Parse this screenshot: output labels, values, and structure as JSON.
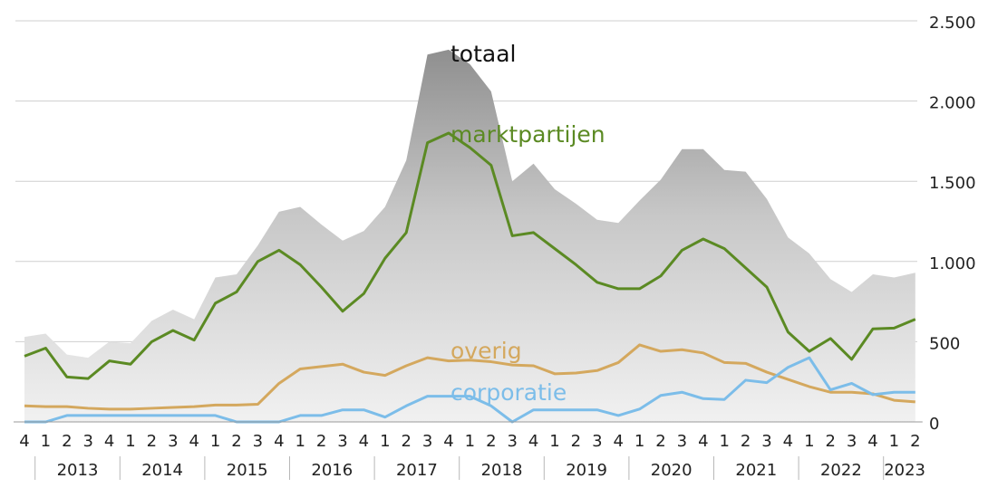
{
  "chart_data": {
    "type": "line",
    "ylim": [
      0,
      2500
    ],
    "y_ticks": [
      {
        "value": 0,
        "label": "0"
      },
      {
        "value": 500,
        "label": "500"
      },
      {
        "value": 1000,
        "label": "1.000"
      },
      {
        "value": 1500,
        "label": "1.500"
      },
      {
        "value": 2000,
        "label": "2.000"
      },
      {
        "value": 2500,
        "label": "2.500"
      }
    ],
    "grid": true,
    "quarter_labels": [
      "4",
      "1",
      "2",
      "3",
      "4",
      "1",
      "2",
      "3",
      "4",
      "1",
      "2",
      "3",
      "4",
      "1",
      "2",
      "3",
      "4",
      "1",
      "2",
      "3",
      "4",
      "1",
      "2",
      "3",
      "4",
      "1",
      "2",
      "3",
      "4",
      "1",
      "2",
      "3",
      "4",
      "1",
      "2",
      "3",
      "4",
      "1",
      "2",
      "3",
      "4",
      "1",
      "2"
    ],
    "years": [
      {
        "label": "2013",
        "start": 1,
        "end": 4
      },
      {
        "label": "2014",
        "start": 5,
        "end": 8
      },
      {
        "label": "2015",
        "start": 9,
        "end": 12
      },
      {
        "label": "2016",
        "start": 13,
        "end": 16
      },
      {
        "label": "2017",
        "start": 17,
        "end": 20
      },
      {
        "label": "2018",
        "start": 21,
        "end": 24
      },
      {
        "label": "2019",
        "start": 25,
        "end": 28
      },
      {
        "label": "2020",
        "start": 29,
        "end": 32
      },
      {
        "label": "2021",
        "start": 33,
        "end": 36
      },
      {
        "label": "2022",
        "start": 37,
        "end": 40
      },
      {
        "label": "2023",
        "start": 41,
        "end": 42
      }
    ],
    "year_dividers": [
      0.5,
      4.5,
      8.5,
      12.5,
      16.5,
      20.5,
      24.5,
      28.5,
      32.5,
      36.5,
      40.5
    ],
    "series": [
      {
        "name": "totaal",
        "style": "area",
        "color": "#a8a8a8",
        "label_pos": [
          20,
          2290
        ],
        "values": [
          530,
          550,
          420,
          400,
          500,
          490,
          630,
          700,
          640,
          900,
          920,
          1100,
          1310,
          1340,
          1230,
          1130,
          1190,
          1340,
          1630,
          2290,
          2320,
          2230,
          2060,
          1500,
          1610,
          1450,
          1360,
          1260,
          1240,
          1380,
          1510,
          1700,
          1700,
          1570,
          1560,
          1390,
          1150,
          1050,
          890,
          810,
          920,
          900,
          930
        ]
      },
      {
        "name": "marktpartijen",
        "style": "line",
        "color": "#5b8a23",
        "label_pos": [
          20,
          1790
        ],
        "values": [
          410,
          460,
          280,
          270,
          380,
          360,
          500,
          570,
          510,
          740,
          810,
          1000,
          1070,
          980,
          840,
          690,
          800,
          1020,
          1180,
          1740,
          1800,
          1710,
          1600,
          1160,
          1180,
          1080,
          980,
          870,
          830,
          830,
          910,
          1070,
          1140,
          1080,
          960,
          840,
          560,
          440,
          520,
          390,
          580,
          585,
          640
        ]
      },
      {
        "name": "overig",
        "style": "line",
        "color": "#d4a85e",
        "label_pos": [
          20,
          440
        ],
        "values": [
          100,
          95,
          95,
          85,
          80,
          80,
          85,
          90,
          95,
          105,
          105,
          110,
          240,
          330,
          345,
          360,
          310,
          290,
          350,
          400,
          380,
          385,
          375,
          355,
          350,
          300,
          305,
          320,
          370,
          480,
          440,
          450,
          430,
          370,
          365,
          310,
          265,
          220,
          185,
          185,
          175,
          135,
          125
        ]
      },
      {
        "name": "corporatie",
        "style": "line",
        "color": "#7cbde9",
        "label_pos": [
          20,
          180
        ],
        "values": [
          0,
          0,
          40,
          40,
          40,
          40,
          40,
          40,
          40,
          40,
          0,
          0,
          0,
          40,
          40,
          75,
          75,
          30,
          100,
          160,
          160,
          160,
          100,
          0,
          75,
          75,
          75,
          75,
          40,
          80,
          165,
          185,
          145,
          140,
          260,
          245,
          340,
          400,
          200,
          240,
          170,
          185,
          185
        ]
      }
    ]
  }
}
